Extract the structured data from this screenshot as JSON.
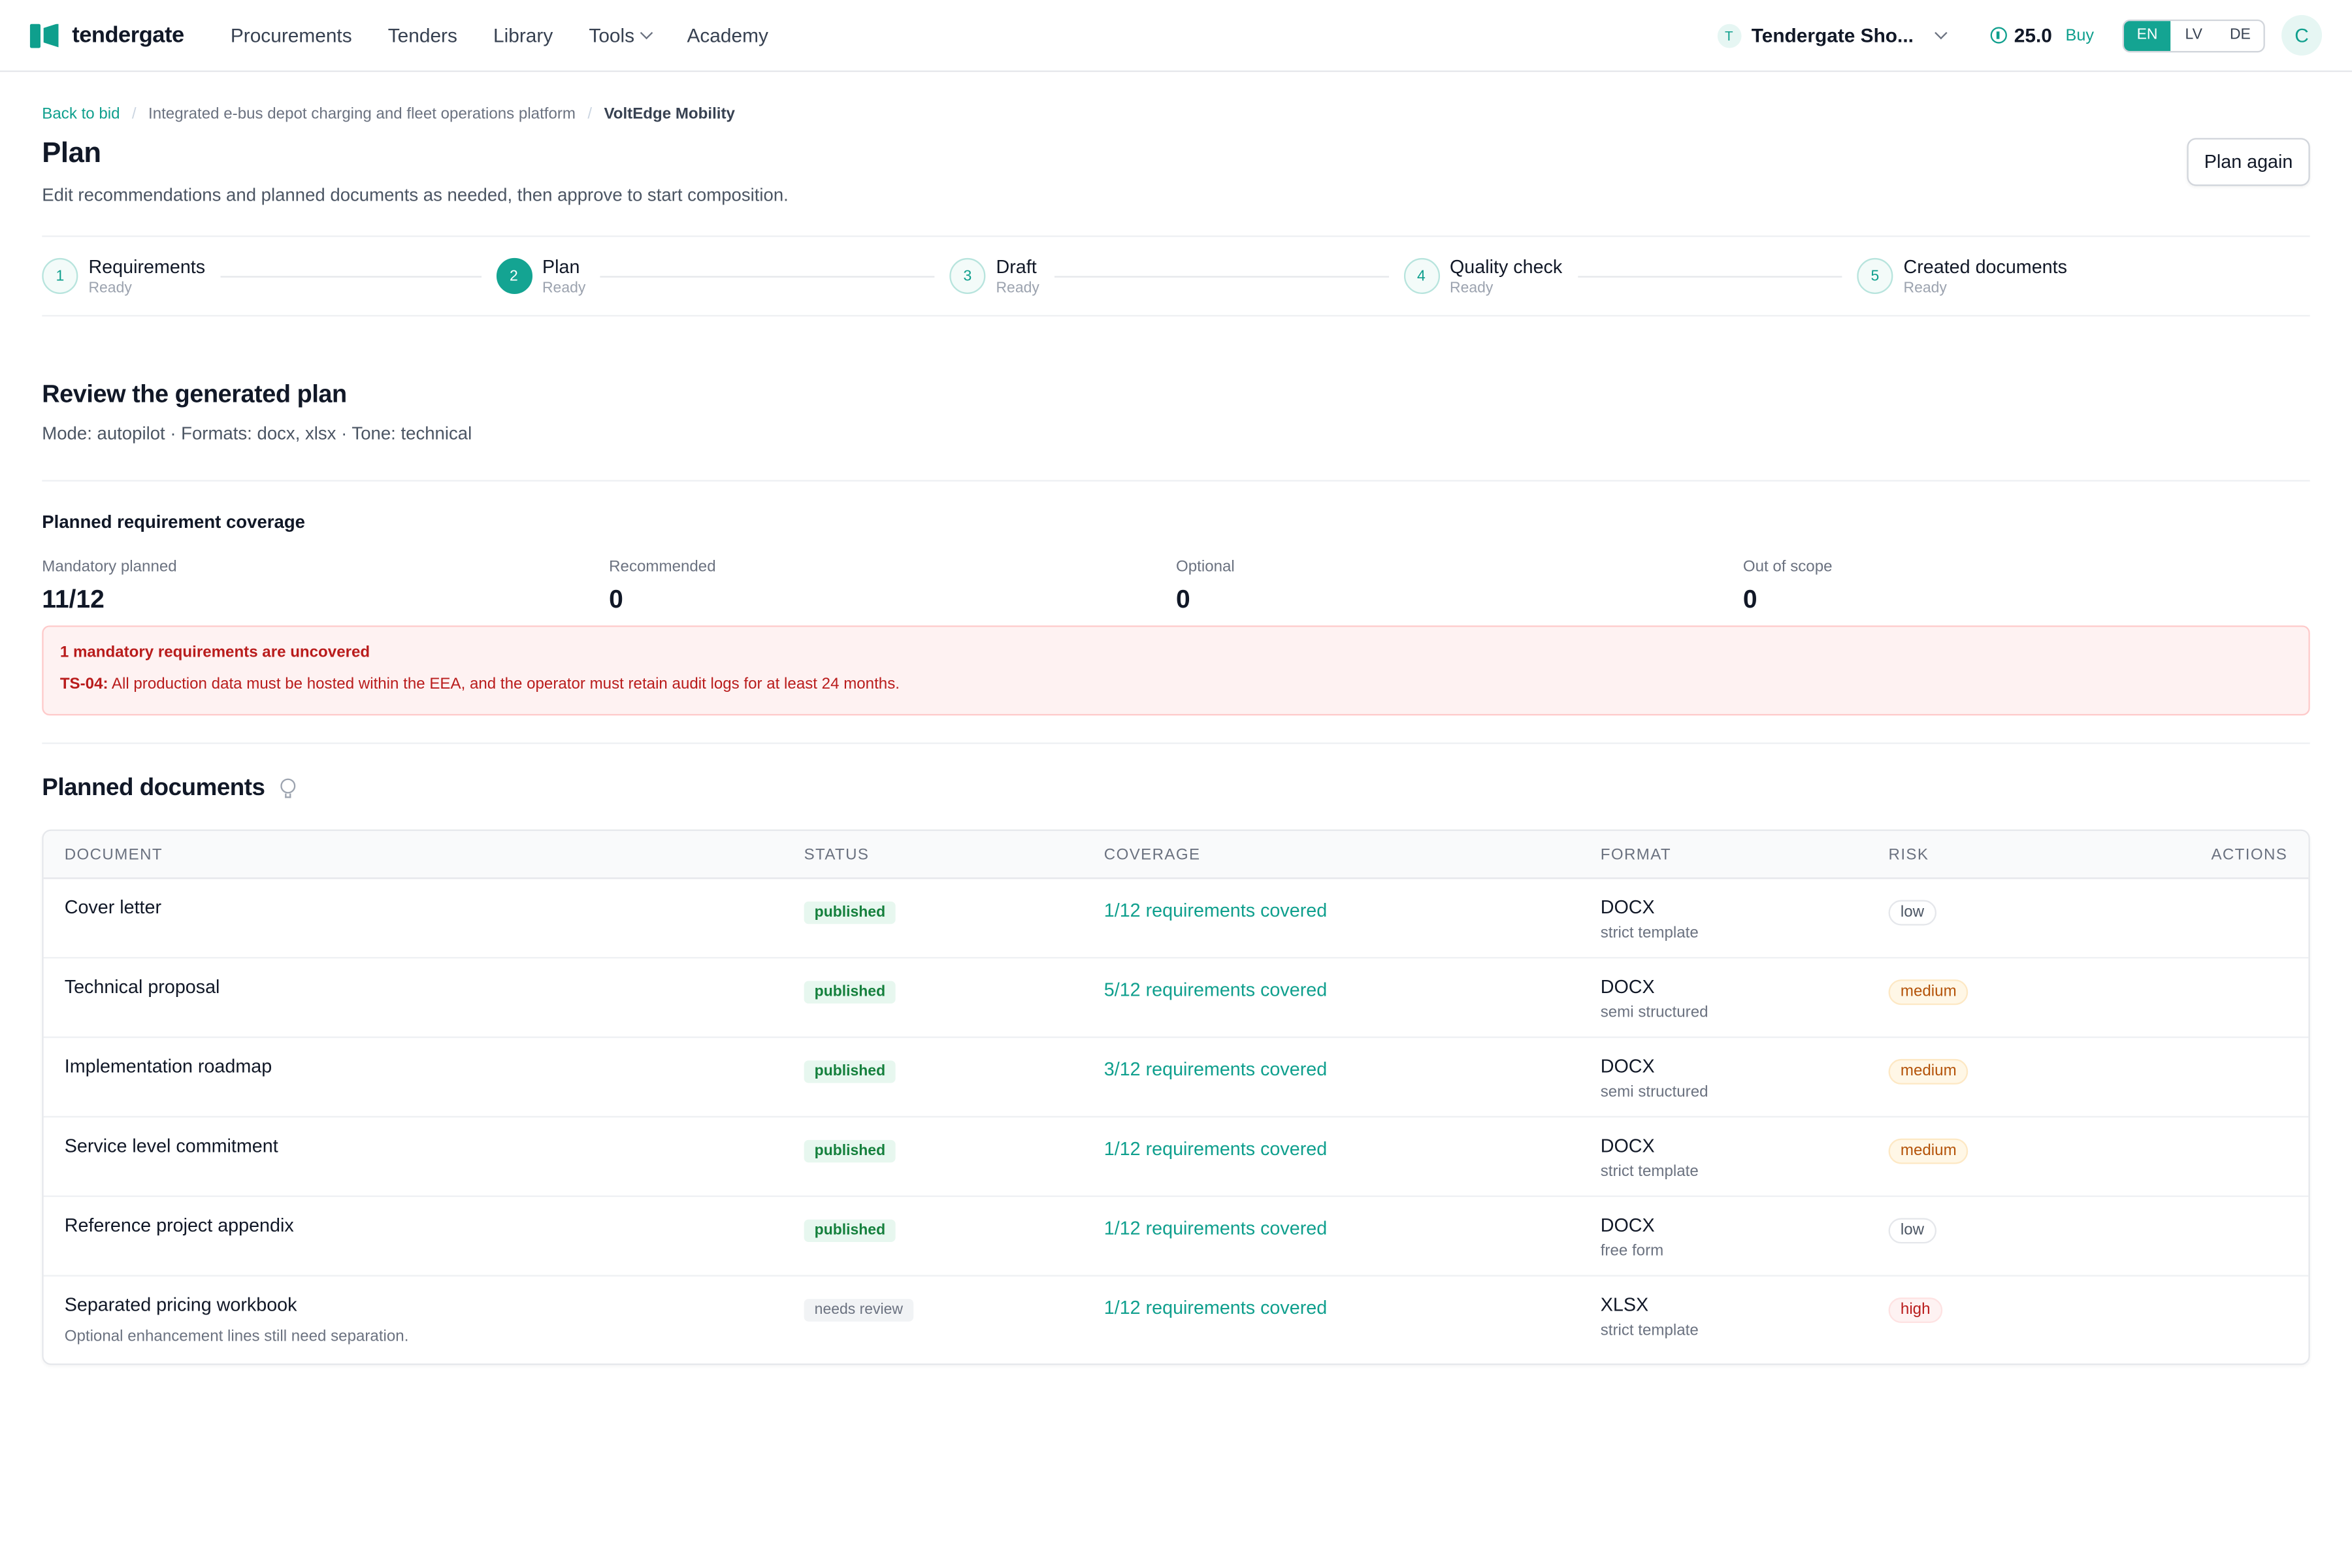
{
  "header": {
    "brand": "tendergate",
    "nav": [
      "Procurements",
      "Tenders",
      "Library",
      "Tools",
      "Academy"
    ],
    "org_initial": "T",
    "org_name": "Tendergate Sho...",
    "credits": "25.0",
    "buy": "Buy",
    "languages": [
      "EN",
      "LV",
      "DE"
    ],
    "active_language": "EN",
    "user_initial": "C"
  },
  "breadcrumb": {
    "back": "Back to bid",
    "middle": "Integrated e-bus depot charging and fleet operations platform",
    "current": "VoltEdge Mobility"
  },
  "page": {
    "title": "Plan",
    "subtitle": "Edit recommendations and planned documents as needed, then approve to start composition.",
    "plan_again": "Plan again"
  },
  "steps": [
    {
      "num": "1",
      "label": "Requirements",
      "status": "Ready"
    },
    {
      "num": "2",
      "label": "Plan",
      "status": "Ready"
    },
    {
      "num": "3",
      "label": "Draft",
      "status": "Ready"
    },
    {
      "num": "4",
      "label": "Quality check",
      "status": "Ready"
    },
    {
      "num": "5",
      "label": "Created documents",
      "status": "Ready"
    }
  ],
  "review": {
    "title": "Review the generated plan",
    "mode": "Mode: autopilot · Formats: docx, xlsx · Tone: technical"
  },
  "coverage": {
    "title": "Planned requirement coverage",
    "stats": [
      {
        "label": "Mandatory planned",
        "value": "11/12"
      },
      {
        "label": "Recommended",
        "value": "0"
      },
      {
        "label": "Optional",
        "value": "0"
      },
      {
        "label": "Out of scope",
        "value": "0"
      }
    ],
    "alert_title": "1 mandatory requirements are uncovered",
    "alert_code": "TS-04:",
    "alert_text": "All production data must be hosted within the EEA, and the operator must retain audit logs for at least 24 months."
  },
  "documents": {
    "title": "Planned documents",
    "columns": [
      "DOCUMENT",
      "STATUS",
      "COVERAGE",
      "FORMAT",
      "RISK",
      "ACTIONS"
    ],
    "rows": [
      {
        "name": "Cover letter",
        "note": "",
        "status": "published",
        "coverage": "1/12 requirements covered",
        "format": "DOCX",
        "format_sub": "strict template",
        "risk": "low"
      },
      {
        "name": "Technical proposal",
        "note": "",
        "status": "published",
        "coverage": "5/12 requirements covered",
        "format": "DOCX",
        "format_sub": "semi structured",
        "risk": "medium"
      },
      {
        "name": "Implementation roadmap",
        "note": "",
        "status": "published",
        "coverage": "3/12 requirements covered",
        "format": "DOCX",
        "format_sub": "semi structured",
        "risk": "medium"
      },
      {
        "name": "Service level commitment",
        "note": "",
        "status": "published",
        "coverage": "1/12 requirements covered",
        "format": "DOCX",
        "format_sub": "strict template",
        "risk": "medium"
      },
      {
        "name": "Reference project appendix",
        "note": "",
        "status": "published",
        "coverage": "1/12 requirements covered",
        "format": "DOCX",
        "format_sub": "free form",
        "risk": "low"
      },
      {
        "name": "Separated pricing workbook",
        "note": "Optional enhancement lines still need separation.",
        "status": "needs review",
        "coverage": "1/12 requirements covered",
        "format": "XLSX",
        "format_sub": "strict template",
        "risk": "high"
      }
    ]
  }
}
